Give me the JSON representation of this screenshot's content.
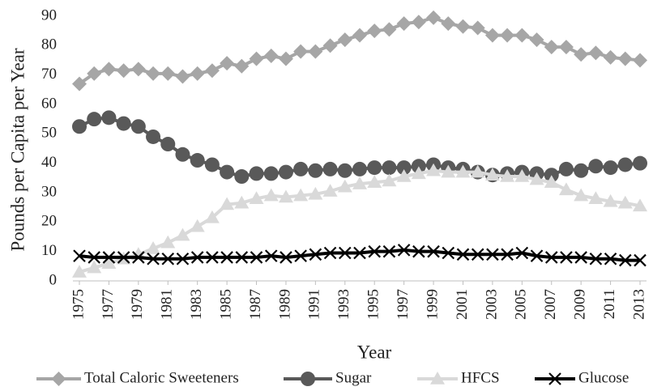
{
  "chart_data": {
    "type": "line",
    "x_label": "Year",
    "y_label": "Pounds per Capita per Year",
    "x": [
      1975,
      1976,
      1977,
      1978,
      1979,
      1980,
      1981,
      1982,
      1983,
      1984,
      1985,
      1986,
      1987,
      1988,
      1989,
      1990,
      1991,
      1992,
      1993,
      1994,
      1995,
      1996,
      1997,
      1998,
      1999,
      2000,
      2001,
      2002,
      2003,
      2004,
      2005,
      2006,
      2007,
      2008,
      2009,
      2010,
      2011,
      2012,
      2013
    ],
    "xlim": [
      1975,
      2013
    ],
    "xticks": [
      1975,
      1977,
      1979,
      1981,
      1983,
      1985,
      1987,
      1989,
      1991,
      1993,
      1995,
      1997,
      1999,
      2001,
      2003,
      2005,
      2007,
      2009,
      2011,
      2013
    ],
    "ylim": [
      0,
      90
    ],
    "yticks": [
      0,
      10,
      20,
      30,
      40,
      50,
      60,
      70,
      80,
      90
    ],
    "legend": "bottom",
    "series": [
      {
        "name": "Total Caloric Sweeteners",
        "color": "#a6a6a6",
        "marker": "diamond",
        "values": [
          67,
          70.5,
          72,
          71.5,
          72,
          70.5,
          70.5,
          69.5,
          70.5,
          71.5,
          74,
          73,
          75.5,
          76.5,
          75.5,
          78,
          78,
          80,
          82,
          83.5,
          85,
          85.5,
          87.5,
          88,
          89.5,
          87.5,
          86.5,
          86,
          83.5,
          83.5,
          83.5,
          82,
          79.5,
          79.5,
          77,
          77.5,
          76,
          75.5,
          75
        ]
      },
      {
        "name": "Sugar",
        "color": "#595959",
        "marker": "circle",
        "values": [
          52.5,
          55,
          55.5,
          53.5,
          52.5,
          49,
          46.5,
          43,
          41,
          39.5,
          37,
          35.5,
          36.5,
          36.5,
          37,
          38,
          37.5,
          38,
          37.5,
          38,
          38.5,
          38.5,
          38.5,
          39,
          39.5,
          38.5,
          38,
          37,
          36,
          36.5,
          37,
          36.5,
          36,
          38,
          37.5,
          39,
          38.5,
          39.5,
          40
        ]
      },
      {
        "name": "HFCS",
        "color": "#d9d9d9",
        "marker": "triangle",
        "values": [
          3,
          4.5,
          6,
          7.5,
          9,
          11,
          13,
          15.5,
          18.5,
          21.5,
          26,
          26.5,
          28,
          29,
          28.5,
          29,
          29.5,
          30.5,
          32,
          33,
          33.5,
          34,
          35.5,
          36.5,
          37.5,
          37,
          37,
          37,
          36,
          35.5,
          35.5,
          34.5,
          33.5,
          31,
          29,
          28,
          27,
          26.5,
          25.5
        ]
      },
      {
        "name": "Glucose",
        "color": "#000000",
        "marker": "x",
        "values": [
          8.5,
          8,
          8,
          8,
          8,
          7.5,
          7.5,
          7.5,
          8,
          8,
          8,
          8,
          8,
          8.5,
          8,
          8.5,
          9,
          9.5,
          9.5,
          9.5,
          10,
          10,
          10.5,
          10,
          10,
          9.5,
          9,
          9,
          9,
          9,
          9.5,
          8.5,
          8,
          8,
          8,
          7.5,
          7.5,
          7,
          7
        ]
      }
    ]
  }
}
